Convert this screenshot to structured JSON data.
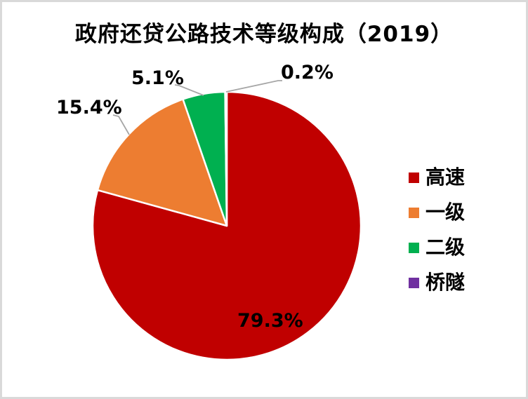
{
  "frame": {
    "background": "#ffffff",
    "border_color": "#d9d9d9"
  },
  "chart_data": {
    "type": "pie",
    "title": "政府还贷公路技术等级构成（2019）",
    "legend_position": "right",
    "slice_border_color": "#ffffff",
    "leader_line_color": "#a6a6a6",
    "start_angle_deg": 0,
    "direction": "clockwise",
    "series": [
      {
        "name": "高速",
        "value": 79.3,
        "label": "79.3%",
        "color": "#c00000"
      },
      {
        "name": "一级",
        "value": 15.4,
        "label": "15.4%",
        "color": "#ed7d31"
      },
      {
        "name": "二级",
        "value": 5.1,
        "label": "5.1%",
        "color": "#00b050"
      },
      {
        "name": "桥隧",
        "value": 0.2,
        "label": "0.2%",
        "color": "#7030a0"
      }
    ]
  }
}
